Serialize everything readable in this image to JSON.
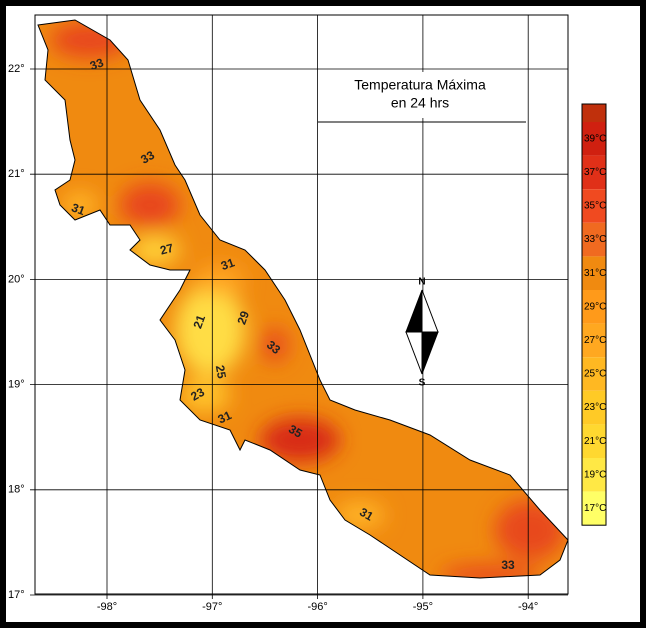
{
  "map": {
    "title": [
      "Temperatura Máxima",
      "en 24 hrs"
    ],
    "longitude_labels": [
      "-98°",
      "-97°",
      "-96°",
      "-95°",
      "-94°"
    ],
    "latitude_labels": [
      "22°",
      "21°",
      "20°",
      "19°",
      "18°",
      "17°"
    ],
    "legend": [
      "39°C",
      "37°C",
      "35°C",
      "33°C",
      "31°C",
      "29°C",
      "27°C",
      "25°C",
      "23°C",
      "21°C",
      "19°C",
      "17°C"
    ],
    "contour_labels": [
      "33",
      "33",
      "31",
      "27",
      "31",
      "21",
      "29",
      "33",
      "25",
      "23",
      "31",
      "35",
      "31",
      "33"
    ],
    "compass": [
      "N",
      "S"
    ]
  }
}
